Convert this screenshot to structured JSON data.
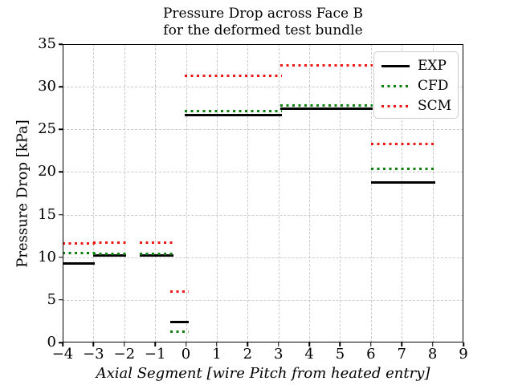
{
  "figure": {
    "title_line1": "Pressure Drop across Face B",
    "title_line2": "for the deformed test bundle",
    "xlabel": "Axial Segment [wire Pitch from heated entry]",
    "ylabel": "Pressure Drop [kPa]"
  },
  "legend": {
    "position": "upper right",
    "items": [
      {
        "label": "EXP",
        "color": "#000000",
        "linestyle": "solid"
      },
      {
        "label": "CFD",
        "color": "#0b820b",
        "linestyle": "dotted"
      },
      {
        "label": "SCM",
        "color": "#ef1616",
        "linestyle": "dotted"
      }
    ]
  },
  "chart_data": {
    "type": "line",
    "subtype": "piecewise-horizontal-segments",
    "title": "Pressure Drop across Face B for the deformed test bundle",
    "xlabel": "Axial Segment [wire Pitch from heated entry]",
    "ylabel": "Pressure Drop [kPa]",
    "xlim": [
      -4,
      9
    ],
    "ylim": [
      0,
      35
    ],
    "xticks": [
      -4,
      -3,
      -2,
      -1,
      0,
      1,
      2,
      3,
      4,
      5,
      6,
      7,
      8,
      9
    ],
    "yticks": [
      0,
      5,
      10,
      15,
      20,
      25,
      30,
      35
    ],
    "grid": true,
    "grid_style": "dashed",
    "legend_position": "upper right",
    "series": [
      {
        "name": "EXP",
        "color": "#000000",
        "linestyle": "solid"
      },
      {
        "name": "CFD",
        "color": "#0b820b",
        "linestyle": "dotted"
      },
      {
        "name": "SCM",
        "color": "#ef1616",
        "linestyle": "dotted"
      }
    ],
    "segments": [
      {
        "x0": -4.0,
        "x1": -2.95,
        "EXP": 9.3,
        "CFD": 10.5,
        "SCM": 11.6
      },
      {
        "x0": -3.0,
        "x1": -1.95,
        "EXP": 10.2,
        "CFD": 10.4,
        "SCM": 11.7
      },
      {
        "x0": -1.5,
        "x1": -0.4,
        "EXP": 10.2,
        "CFD": 10.4,
        "SCM": 11.7
      },
      {
        "x0": -0.5,
        "x1": 0.1,
        "EXP": 2.4,
        "CFD": 1.3,
        "SCM": 6.0
      },
      {
        "x0": -0.05,
        "x1": 3.1,
        "EXP": 26.7,
        "CFD": 27.1,
        "SCM": 31.3
      },
      {
        "x0": 3.05,
        "x1": 6.05,
        "EXP": 27.4,
        "CFD": 27.8,
        "SCM": 32.5
      },
      {
        "x0": 6.0,
        "x1": 8.1,
        "EXP": 18.8,
        "CFD": 20.4,
        "SCM": 23.3
      }
    ]
  }
}
